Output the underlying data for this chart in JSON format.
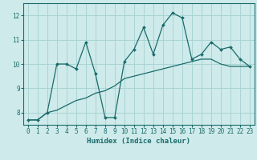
{
  "xlabel": "Humidex (Indice chaleur)",
  "ylabel": "",
  "bg_color": "#ceeaea",
  "grid_color": "#aad4d4",
  "line_color": "#1a6b6b",
  "x_data": [
    0,
    1,
    2,
    3,
    4,
    5,
    6,
    7,
    8,
    9,
    10,
    11,
    12,
    13,
    14,
    15,
    16,
    17,
    18,
    19,
    20,
    21,
    22,
    23
  ],
  "y_line1": [
    7.7,
    7.7,
    8.0,
    10.0,
    10.0,
    9.8,
    10.9,
    9.6,
    7.8,
    7.8,
    10.1,
    10.6,
    11.5,
    10.4,
    11.6,
    12.1,
    11.9,
    10.2,
    10.4,
    10.9,
    10.6,
    10.7,
    10.2,
    9.9
  ],
  "y_line2": [
    7.7,
    7.7,
    8.0,
    8.1,
    8.3,
    8.5,
    8.6,
    8.8,
    8.9,
    9.1,
    9.4,
    9.5,
    9.6,
    9.7,
    9.8,
    9.9,
    10.0,
    10.1,
    10.2,
    10.2,
    10.0,
    9.9,
    9.9,
    9.9
  ],
  "xlim": [
    -0.5,
    23.5
  ],
  "ylim": [
    7.5,
    12.5
  ],
  "yticks": [
    8,
    9,
    10,
    11,
    12
  ],
  "xticks": [
    0,
    1,
    2,
    3,
    4,
    5,
    6,
    7,
    8,
    9,
    10,
    11,
    12,
    13,
    14,
    15,
    16,
    17,
    18,
    19,
    20,
    21,
    22,
    23
  ],
  "tick_fontsize": 5.5,
  "xlabel_fontsize": 6.5
}
